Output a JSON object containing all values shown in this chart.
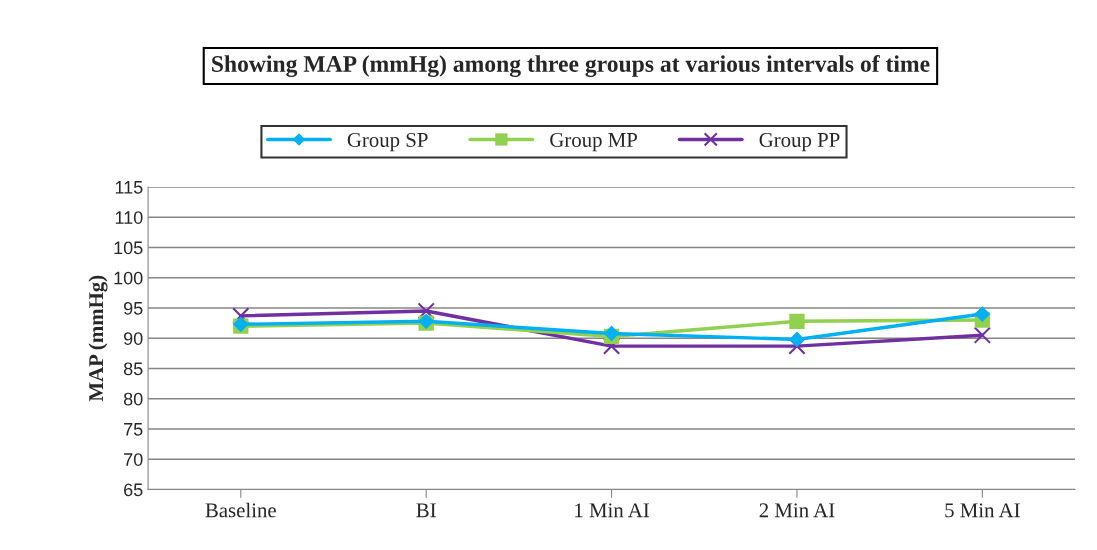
{
  "chart_data": {
    "type": "line",
    "title": "Showing MAP (mmHg) among three groups at various intervals of time",
    "ylabel": "MAP (mmHg)",
    "categories": [
      "Baseline",
      "BI",
      "1 Min AI",
      "2 Min AI",
      "5 Min AI"
    ],
    "series": [
      {
        "name": "Group SP",
        "color": "#00b0f0",
        "marker": "diamond",
        "values": [
          92.3,
          92.8,
          90.8,
          89.8,
          94.0
        ]
      },
      {
        "name": "Group MP",
        "color": "#92d050",
        "marker": "square",
        "values": [
          92.0,
          92.5,
          90.3,
          92.8,
          93.0
        ]
      },
      {
        "name": "Group PP",
        "color": "#7030a0",
        "marker": "cross",
        "values": [
          93.7,
          94.5,
          88.7,
          88.7,
          90.5
        ]
      }
    ],
    "ylim": [
      65,
      115
    ],
    "yticks": [
      65,
      70,
      75,
      80,
      85,
      90,
      95,
      100,
      105,
      110,
      115
    ],
    "grid": "y",
    "legend": "top",
    "line_style": "solid"
  }
}
